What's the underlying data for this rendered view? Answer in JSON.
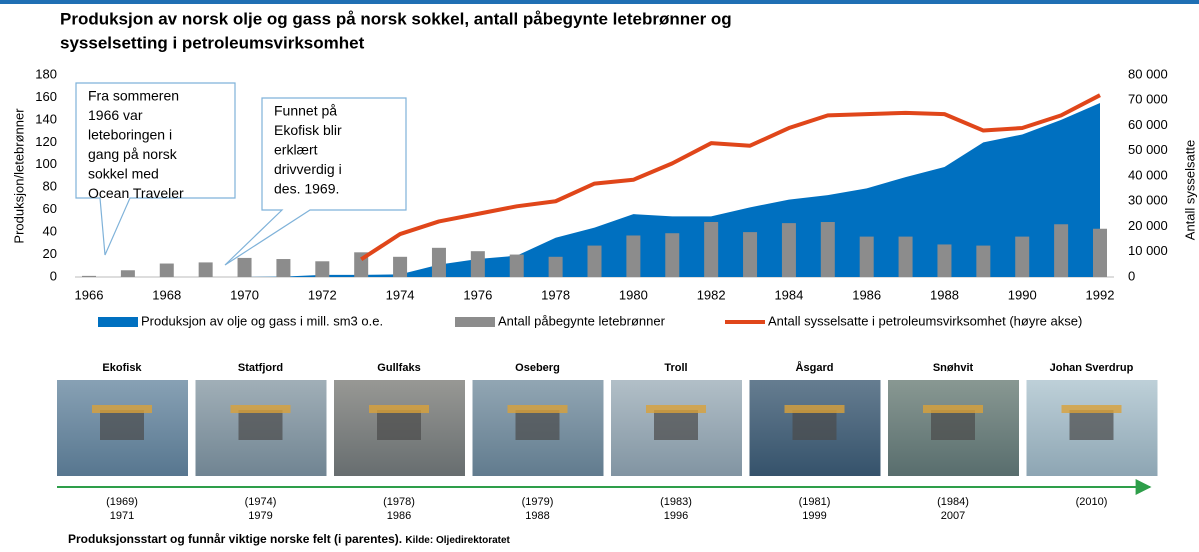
{
  "chart_data": {
    "type": "combo",
    "title": [
      "Produksjon av norsk olje og gass på norsk sokkel, antall påbegynte letebrønner og",
      "sysselsetting i petroleumsvirksomhet"
    ],
    "ylabel": "Produksjon/letebrønner",
    "y2label": "Antall sysselsatte",
    "x": [
      1966,
      1967,
      1968,
      1969,
      1970,
      1971,
      1972,
      1973,
      1974,
      1975,
      1976,
      1977,
      1978,
      1979,
      1980,
      1981,
      1982,
      1983,
      1984,
      1985,
      1986,
      1987,
      1988,
      1989,
      1990,
      1991,
      1992
    ],
    "xlim": [
      1966,
      1992
    ],
    "xticks": [
      1966,
      1968,
      1970,
      1972,
      1974,
      1976,
      1978,
      1980,
      1982,
      1984,
      1986,
      1988,
      1990,
      1992
    ],
    "ylim": [
      0,
      180
    ],
    "yticks": [
      0,
      20,
      40,
      60,
      80,
      100,
      120,
      140,
      160,
      180
    ],
    "y2lim": [
      0,
      80000
    ],
    "y2ticks": [
      0,
      {
        "value": 10000,
        "label": "10 000"
      },
      {
        "value": 20000,
        "label": "20 000"
      },
      {
        "value": 30000,
        "label": "30 000"
      },
      {
        "value": 40000,
        "label": "40 000"
      },
      {
        "value": 50000,
        "label": "50 000"
      },
      {
        "value": 60000,
        "label": "60 000"
      },
      {
        "value": 70000,
        "label": "70 000"
      },
      {
        "value": 80000,
        "label": "80 000"
      }
    ],
    "series": [
      {
        "name": "Produksjon av olje og gass i mill. sm3 o.e.",
        "type": "area",
        "color": "#0070c0",
        "values": [
          0,
          0,
          0,
          0,
          0,
          0.3,
          1.9,
          1.9,
          2.3,
          11,
          16,
          19,
          35,
          44,
          56,
          54,
          54,
          62,
          69,
          73,
          79,
          89,
          98,
          120,
          127,
          140,
          155
        ]
      },
      {
        "name": "Antall påbegynte letebrønner",
        "type": "bar",
        "color": "#8c8c8c",
        "values": [
          1,
          6,
          12,
          13,
          17,
          16,
          14,
          22,
          18,
          26,
          23,
          20,
          18,
          28,
          37,
          39,
          49,
          40,
          48,
          49,
          36,
          36,
          29,
          28,
          36,
          47,
          43
        ]
      },
      {
        "name": "Antall sysselsatte i petroleumsvirksomhet (høyre akse)",
        "type": "line",
        "color": "#e0461a",
        "axis": "y2",
        "values": [
          null,
          null,
          null,
          null,
          null,
          null,
          null,
          7000,
          17000,
          22000,
          25000,
          28000,
          30000,
          37000,
          38500,
          45000,
          53000,
          52000,
          59000,
          64000,
          64500,
          65000,
          64500,
          58000,
          59000,
          64000,
          72000
        ]
      }
    ],
    "annotations": [
      {
        "lines": [
          "Fra sommeren",
          "1966 var",
          "leteboringen i",
          "gang på norsk",
          "sokkel med",
          "Ocean Traveler"
        ]
      },
      {
        "lines": [
          "Funnet på",
          "Ekofisk blir",
          "erklært",
          "drivverdig i",
          "des. 1969."
        ]
      }
    ]
  },
  "fields": [
    {
      "name": "Ekofisk",
      "discovered": "(1969)",
      "start": "1971"
    },
    {
      "name": "Statfjord",
      "discovered": "(1974)",
      "start": "1979"
    },
    {
      "name": "Gullfaks",
      "discovered": "(1978)",
      "start": "1986"
    },
    {
      "name": "Oseberg",
      "discovered": "(1979)",
      "start": "1988"
    },
    {
      "name": "Troll",
      "discovered": "(1983)",
      "start": "1996"
    },
    {
      "name": "Åsgard",
      "discovered": "(1981)",
      "start": "1999"
    },
    {
      "name": "Snøhvit",
      "discovered": "(1984)",
      "start": "2007"
    },
    {
      "name": "Johan Sverdrup",
      "discovered": "(2010)"
    }
  ],
  "caption": "Produksjonsstart og funnår viktige norske felt (i parentes).",
  "source": "Kilde: Oljedirektoratet"
}
